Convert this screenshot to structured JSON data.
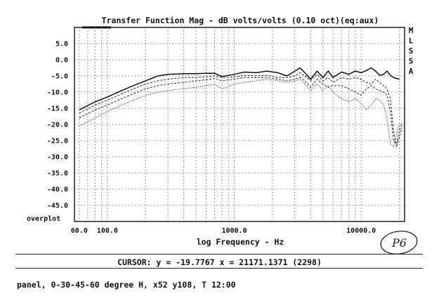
{
  "chart_data": {
    "type": "line",
    "title": "Transfer Function Mag - dB volts/volts (0.10 oct)(eq:aux)",
    "xlabel": "log Frequency - Hz",
    "ylabel": "",
    "xscale": "log",
    "xlim": [
      55,
      22000
    ],
    "ylim": [
      -50,
      10
    ],
    "grid": true,
    "x_tick_labels": [
      {
        "value": 60,
        "label": "60.0"
      },
      {
        "value": 100,
        "label": "100.0"
      },
      {
        "value": 1000,
        "label": "1000.0"
      },
      {
        "value": 10000,
        "label": "10000.0"
      }
    ],
    "y_tick_labels": [
      "5.0",
      "0.0",
      "-5.0",
      "-10.0",
      "-15.0",
      "-20.0",
      "-25.0",
      "-30.0",
      "-35.0",
      "-40.0",
      "-45.0"
    ],
    "y_tick_values": [
      5,
      0,
      -5,
      -10,
      -15,
      -20,
      -25,
      -30,
      -35,
      -40,
      -45
    ],
    "bottom_left_label": "overplot",
    "side_letters": [
      "M",
      "L",
      "S",
      "S",
      "A"
    ],
    "series": [
      {
        "name": "0 degree",
        "style": "solid",
        "x": [
          60,
          80,
          100,
          130,
          160,
          200,
          250,
          300,
          400,
          500,
          600,
          700,
          800,
          1000,
          1200,
          1500,
          1800,
          2200,
          2600,
          3000,
          3300,
          3600,
          4000,
          4500,
          5000,
          5500,
          6000,
          7000,
          8000,
          9000,
          10000,
          11000,
          12000,
          13000,
          14000,
          15000,
          16000,
          17000,
          18000,
          20000
        ],
        "values": [
          -15.5,
          -13,
          -11.5,
          -9.5,
          -8,
          -6.5,
          -5,
          -4.5,
          -4.3,
          -4.3,
          -4.2,
          -4.2,
          -5.2,
          -4.5,
          -3.8,
          -4,
          -3.5,
          -4,
          -5,
          -3.5,
          -2.5,
          -4,
          -6,
          -3.5,
          -5.5,
          -3.5,
          -5.5,
          -3.8,
          -4.5,
          -3.5,
          -4,
          -3.3,
          -2.5,
          -3.5,
          -4.8,
          -4.5,
          -3.5,
          -4.8,
          -5.5,
          -6
        ]
      },
      {
        "name": "30 degree",
        "style": "dashed",
        "x": [
          60,
          80,
          100,
          130,
          160,
          200,
          250,
          300,
          400,
          500,
          600,
          700,
          800,
          1000,
          1200,
          1500,
          1800,
          2200,
          2600,
          3000,
          3300,
          3600,
          4000,
          4500,
          5000,
          5500,
          6000,
          7000,
          8000,
          9000,
          10000,
          11000,
          12000,
          13000,
          14000,
          15000,
          16000,
          17000,
          18000,
          19000,
          20000,
          21000
        ],
        "values": [
          -16.5,
          -14,
          -12.5,
          -10.5,
          -9,
          -7.5,
          -6.5,
          -6,
          -5.5,
          -5.5,
          -5.3,
          -5,
          -5.5,
          -5.3,
          -4.8,
          -5,
          -4.8,
          -5.5,
          -5.5,
          -5,
          -4,
          -5,
          -6.5,
          -4.5,
          -6.5,
          -5.5,
          -7,
          -5.5,
          -6,
          -5.5,
          -6,
          -7,
          -7.5,
          -6,
          -7,
          -8,
          -9,
          -12,
          -22,
          -27,
          -24,
          -21
        ]
      },
      {
        "name": "45 degree",
        "style": "dashed",
        "x": [
          60,
          80,
          100,
          130,
          160,
          200,
          250,
          300,
          400,
          500,
          600,
          700,
          800,
          1000,
          1200,
          1500,
          1800,
          2200,
          2600,
          3000,
          3300,
          3600,
          4000,
          4500,
          5000,
          5500,
          6000,
          7000,
          8000,
          9000,
          10000,
          11000,
          12000,
          13000,
          14000,
          15000,
          16000,
          17000,
          18000,
          19000,
          20000,
          21000
        ],
        "values": [
          -18,
          -15.5,
          -14,
          -12,
          -10.5,
          -9,
          -8,
          -7.5,
          -7,
          -6.5,
          -6.2,
          -5.8,
          -6.5,
          -6,
          -5.5,
          -5.5,
          -5.5,
          -6,
          -6.5,
          -6,
          -5.5,
          -6.5,
          -8.5,
          -6,
          -7.5,
          -8.5,
          -8,
          -8,
          -9,
          -10,
          -11,
          -9,
          -8,
          -9,
          -9.5,
          -10,
          -11,
          -16,
          -25,
          -26,
          -22,
          -19.8
        ]
      },
      {
        "name": "60 degree",
        "style": "dotted",
        "x": [
          60,
          80,
          100,
          130,
          160,
          200,
          250,
          300,
          400,
          500,
          600,
          700,
          800,
          1000,
          1200,
          1500,
          1800,
          2200,
          2600,
          3000,
          3300,
          3600,
          4000,
          4500,
          5000,
          5500,
          6000,
          7000,
          8000,
          9000,
          10000,
          11000,
          12000,
          13000,
          14000,
          15000,
          16000,
          17000,
          18000,
          19000,
          20000,
          21000
        ],
        "values": [
          -20.5,
          -18,
          -16,
          -14,
          -12.5,
          -11,
          -10,
          -9.5,
          -9,
          -8.5,
          -8,
          -7.5,
          -9,
          -7.5,
          -7,
          -6.5,
          -6,
          -6.5,
          -7,
          -6.5,
          -6,
          -7.5,
          -9.5,
          -7.5,
          -9.5,
          -8,
          -10,
          -12,
          -13,
          -12,
          -13.5,
          -15.5,
          -14,
          -12,
          -12.5,
          -14,
          -18,
          -26,
          -27,
          -23,
          -20,
          -19.7
        ]
      }
    ]
  },
  "status": {
    "cursor_text": "CURSOR: y = -19.7767 x = 21171.1371 (2298)"
  },
  "footer": {
    "text": "panel, 0-30-45-60 degree H, x52 y108, T 12:00"
  },
  "stamp": {
    "text": "P6"
  }
}
